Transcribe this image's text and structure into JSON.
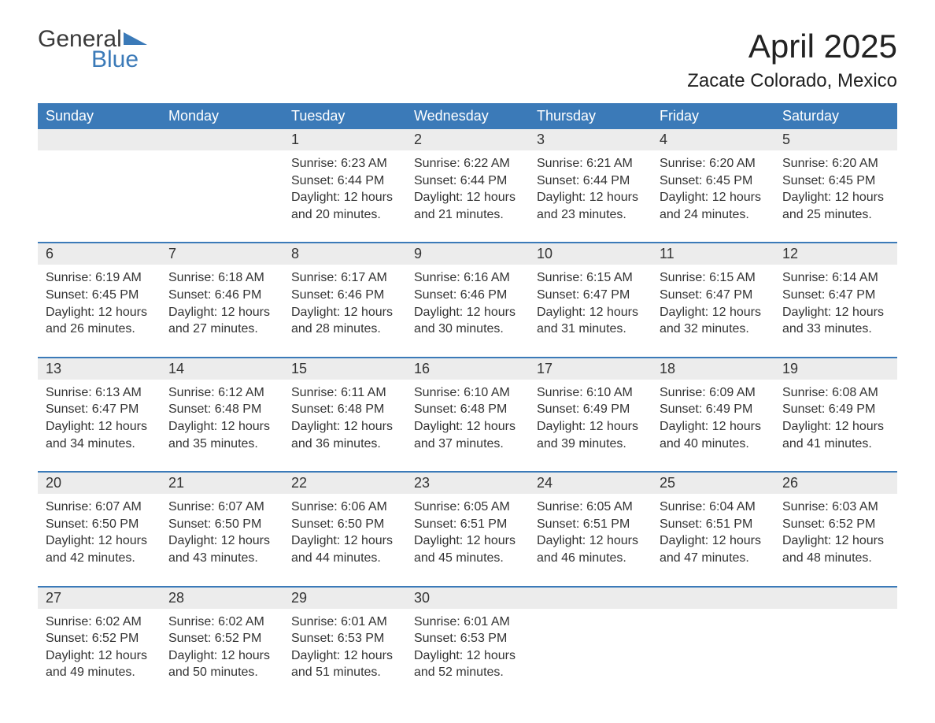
{
  "brand": {
    "word1": "General",
    "word2": "Blue",
    "accent_color": "#3b7ab8",
    "text_color": "#3a3a3a"
  },
  "title": "April 2025",
  "location": "Zacate Colorado, Mexico",
  "colors": {
    "header_bg": "#3b7ab8",
    "header_text": "#ffffff",
    "daynum_bg": "#ececec",
    "row_divider": "#3b7ab8",
    "body_text": "#333333",
    "page_bg": "#ffffff"
  },
  "fonts": {
    "body_size_pt": 12,
    "title_size_pt": 32,
    "location_size_pt": 18,
    "header_size_pt": 14
  },
  "weekdays": [
    "Sunday",
    "Monday",
    "Tuesday",
    "Wednesday",
    "Thursday",
    "Friday",
    "Saturday"
  ],
  "weeks": [
    [
      null,
      null,
      {
        "d": "1",
        "sr": "Sunrise: 6:23 AM",
        "ss": "Sunset: 6:44 PM",
        "dl1": "Daylight: 12 hours",
        "dl2": "and 20 minutes."
      },
      {
        "d": "2",
        "sr": "Sunrise: 6:22 AM",
        "ss": "Sunset: 6:44 PM",
        "dl1": "Daylight: 12 hours",
        "dl2": "and 21 minutes."
      },
      {
        "d": "3",
        "sr": "Sunrise: 6:21 AM",
        "ss": "Sunset: 6:44 PM",
        "dl1": "Daylight: 12 hours",
        "dl2": "and 23 minutes."
      },
      {
        "d": "4",
        "sr": "Sunrise: 6:20 AM",
        "ss": "Sunset: 6:45 PM",
        "dl1": "Daylight: 12 hours",
        "dl2": "and 24 minutes."
      },
      {
        "d": "5",
        "sr": "Sunrise: 6:20 AM",
        "ss": "Sunset: 6:45 PM",
        "dl1": "Daylight: 12 hours",
        "dl2": "and 25 minutes."
      }
    ],
    [
      {
        "d": "6",
        "sr": "Sunrise: 6:19 AM",
        "ss": "Sunset: 6:45 PM",
        "dl1": "Daylight: 12 hours",
        "dl2": "and 26 minutes."
      },
      {
        "d": "7",
        "sr": "Sunrise: 6:18 AM",
        "ss": "Sunset: 6:46 PM",
        "dl1": "Daylight: 12 hours",
        "dl2": "and 27 minutes."
      },
      {
        "d": "8",
        "sr": "Sunrise: 6:17 AM",
        "ss": "Sunset: 6:46 PM",
        "dl1": "Daylight: 12 hours",
        "dl2": "and 28 minutes."
      },
      {
        "d": "9",
        "sr": "Sunrise: 6:16 AM",
        "ss": "Sunset: 6:46 PM",
        "dl1": "Daylight: 12 hours",
        "dl2": "and 30 minutes."
      },
      {
        "d": "10",
        "sr": "Sunrise: 6:15 AM",
        "ss": "Sunset: 6:47 PM",
        "dl1": "Daylight: 12 hours",
        "dl2": "and 31 minutes."
      },
      {
        "d": "11",
        "sr": "Sunrise: 6:15 AM",
        "ss": "Sunset: 6:47 PM",
        "dl1": "Daylight: 12 hours",
        "dl2": "and 32 minutes."
      },
      {
        "d": "12",
        "sr": "Sunrise: 6:14 AM",
        "ss": "Sunset: 6:47 PM",
        "dl1": "Daylight: 12 hours",
        "dl2": "and 33 minutes."
      }
    ],
    [
      {
        "d": "13",
        "sr": "Sunrise: 6:13 AM",
        "ss": "Sunset: 6:47 PM",
        "dl1": "Daylight: 12 hours",
        "dl2": "and 34 minutes."
      },
      {
        "d": "14",
        "sr": "Sunrise: 6:12 AM",
        "ss": "Sunset: 6:48 PM",
        "dl1": "Daylight: 12 hours",
        "dl2": "and 35 minutes."
      },
      {
        "d": "15",
        "sr": "Sunrise: 6:11 AM",
        "ss": "Sunset: 6:48 PM",
        "dl1": "Daylight: 12 hours",
        "dl2": "and 36 minutes."
      },
      {
        "d": "16",
        "sr": "Sunrise: 6:10 AM",
        "ss": "Sunset: 6:48 PM",
        "dl1": "Daylight: 12 hours",
        "dl2": "and 37 minutes."
      },
      {
        "d": "17",
        "sr": "Sunrise: 6:10 AM",
        "ss": "Sunset: 6:49 PM",
        "dl1": "Daylight: 12 hours",
        "dl2": "and 39 minutes."
      },
      {
        "d": "18",
        "sr": "Sunrise: 6:09 AM",
        "ss": "Sunset: 6:49 PM",
        "dl1": "Daylight: 12 hours",
        "dl2": "and 40 minutes."
      },
      {
        "d": "19",
        "sr": "Sunrise: 6:08 AM",
        "ss": "Sunset: 6:49 PM",
        "dl1": "Daylight: 12 hours",
        "dl2": "and 41 minutes."
      }
    ],
    [
      {
        "d": "20",
        "sr": "Sunrise: 6:07 AM",
        "ss": "Sunset: 6:50 PM",
        "dl1": "Daylight: 12 hours",
        "dl2": "and 42 minutes."
      },
      {
        "d": "21",
        "sr": "Sunrise: 6:07 AM",
        "ss": "Sunset: 6:50 PM",
        "dl1": "Daylight: 12 hours",
        "dl2": "and 43 minutes."
      },
      {
        "d": "22",
        "sr": "Sunrise: 6:06 AM",
        "ss": "Sunset: 6:50 PM",
        "dl1": "Daylight: 12 hours",
        "dl2": "and 44 minutes."
      },
      {
        "d": "23",
        "sr": "Sunrise: 6:05 AM",
        "ss": "Sunset: 6:51 PM",
        "dl1": "Daylight: 12 hours",
        "dl2": "and 45 minutes."
      },
      {
        "d": "24",
        "sr": "Sunrise: 6:05 AM",
        "ss": "Sunset: 6:51 PM",
        "dl1": "Daylight: 12 hours",
        "dl2": "and 46 minutes."
      },
      {
        "d": "25",
        "sr": "Sunrise: 6:04 AM",
        "ss": "Sunset: 6:51 PM",
        "dl1": "Daylight: 12 hours",
        "dl2": "and 47 minutes."
      },
      {
        "d": "26",
        "sr": "Sunrise: 6:03 AM",
        "ss": "Sunset: 6:52 PM",
        "dl1": "Daylight: 12 hours",
        "dl2": "and 48 minutes."
      }
    ],
    [
      {
        "d": "27",
        "sr": "Sunrise: 6:02 AM",
        "ss": "Sunset: 6:52 PM",
        "dl1": "Daylight: 12 hours",
        "dl2": "and 49 minutes."
      },
      {
        "d": "28",
        "sr": "Sunrise: 6:02 AM",
        "ss": "Sunset: 6:52 PM",
        "dl1": "Daylight: 12 hours",
        "dl2": "and 50 minutes."
      },
      {
        "d": "29",
        "sr": "Sunrise: 6:01 AM",
        "ss": "Sunset: 6:53 PM",
        "dl1": "Daylight: 12 hours",
        "dl2": "and 51 minutes."
      },
      {
        "d": "30",
        "sr": "Sunrise: 6:01 AM",
        "ss": "Sunset: 6:53 PM",
        "dl1": "Daylight: 12 hours",
        "dl2": "and 52 minutes."
      },
      null,
      null,
      null
    ]
  ]
}
